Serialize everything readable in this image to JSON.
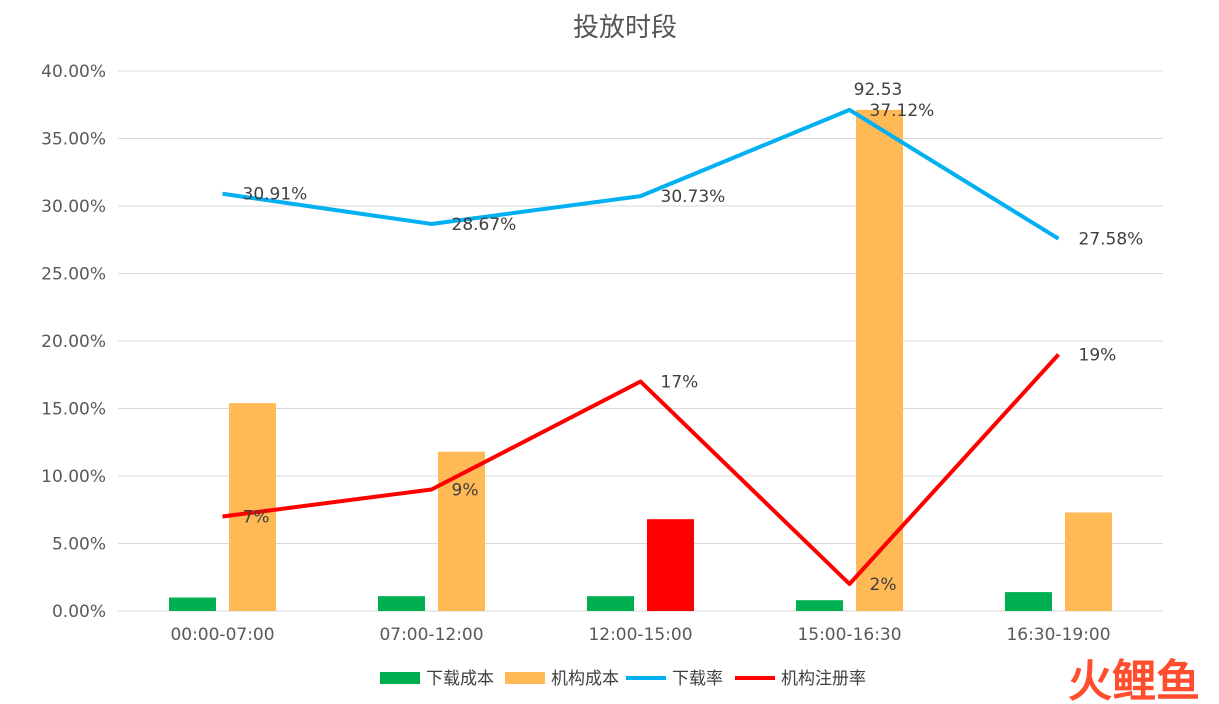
{
  "chart_data": {
    "type": "bar",
    "title": "投放时段",
    "categories": [
      "00:00-07:00",
      "07:00-12:00",
      "12:00-15:00",
      "15:00-16:30",
      "16:30-19:00"
    ],
    "ylim": [
      0,
      40
    ],
    "yticks": [
      "0.00%",
      "5.00%",
      "10.00%",
      "15.00%",
      "20.00%",
      "25.00%",
      "30.00%",
      "35.00%",
      "40.00%"
    ],
    "grid": true,
    "legend_position": "bottom",
    "bar_series": [
      {
        "name": "下载成本",
        "color": "#00b050",
        "values": [
          1.0,
          1.1,
          1.1,
          0.8,
          1.4
        ]
      },
      {
        "name": "机构成本",
        "color": "#ffb955",
        "values": [
          15.4,
          11.8,
          6.8,
          37.12,
          7.3
        ],
        "point_colors": [
          null,
          null,
          "#ff0000",
          null,
          null
        ]
      }
    ],
    "line_series": [
      {
        "name": "下载率",
        "color": "#00b0f0",
        "values": [
          30.91,
          28.67,
          30.73,
          37.12,
          27.58
        ],
        "labels": [
          "30.91%",
          "28.67%",
          "30.73%",
          "37.12%",
          "27.58%"
        ]
      },
      {
        "name": "机构注册率",
        "color": "#ff0000",
        "values": [
          7,
          9,
          17,
          2,
          19
        ],
        "labels": [
          "7%",
          "9%",
          "17%",
          "2%",
          "19%"
        ]
      }
    ],
    "annotations": [
      "92.53"
    ]
  },
  "watermark": {
    "text": "火鲤鱼"
  }
}
